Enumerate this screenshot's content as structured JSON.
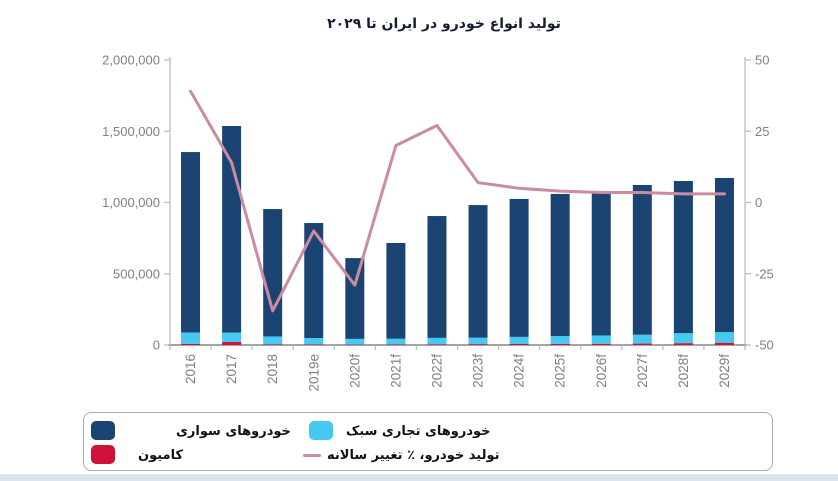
{
  "title": "تولید انواع خودرو در ایران تا ۲۰۲۹",
  "colors": {
    "passenger_bar": "#1c4473",
    "light_commercial_bar": "#45c8f1",
    "truck_bar": "#cf1038",
    "line": "#cb8ba0",
    "axis_text": "#808080",
    "axis_line": "#bdbdbd",
    "baseline": "#a3a3a3",
    "title_text": "#141d35",
    "legend_border": "#ababab",
    "bottom_strip": "#dbe3ee"
  },
  "chart_data": {
    "type": "combo: stacked bar + line",
    "categories": [
      "2016",
      "2017",
      "2018",
      "2019e",
      "2020f",
      "2021f",
      "2022f",
      "2023f",
      "2024f",
      "2025f",
      "2026f",
      "2027f",
      "2028f",
      "2029f"
    ],
    "series": [
      {
        "name": "خودروهای سواری",
        "type": "bar",
        "axis": "left",
        "color": "#1c4473",
        "values": [
          1266000,
          1450000,
          894000,
          807000,
          567000,
          672000,
          855000,
          931000,
          968000,
          997000,
          1014000,
          1051000,
          1068000,
          1081000
        ]
      },
      {
        "name": "خودروهای تجاری سبک",
        "type": "bar",
        "axis": "left",
        "color": "#45c8f1",
        "values": [
          80000,
          65000,
          55000,
          45000,
          40000,
          40000,
          45000,
          45000,
          50000,
          55000,
          58000,
          62000,
          70000,
          75000
        ]
      },
      {
        "name": "کامیون",
        "type": "bar",
        "axis": "left",
        "color": "#cf1038",
        "values": [
          8000,
          22000,
          5000,
          4000,
          3000,
          4000,
          5000,
          6000,
          7000,
          8000,
          9000,
          10000,
          13000,
          16000
        ]
      },
      {
        "name": "تولید خودرو، ٪ تغییر سالانه",
        "type": "line",
        "axis": "right",
        "color": "#cb8ba0",
        "values": [
          39,
          14,
          -38,
          -10,
          -29,
          20,
          27,
          7,
          5,
          4,
          3.5,
          3.5,
          3,
          3
        ]
      }
    ],
    "stack_order_bottom_to_top": [
      "کامیون",
      "خودروهای تجاری سبک",
      "خودروهای سواری"
    ],
    "left_axis": {
      "min": 0,
      "max": 2000000,
      "tick_values": [
        0,
        500000,
        1000000,
        1500000,
        2000000
      ],
      "tick_labels": [
        "0",
        "500,000",
        "1,000,000",
        "1,500,000",
        "2,000,000"
      ]
    },
    "right_axis": {
      "min": -50,
      "max": 50,
      "tick_values": [
        -50,
        -25,
        0,
        25,
        50
      ],
      "tick_labels": [
        "-50",
        "-25",
        "0",
        "25",
        "50"
      ]
    },
    "grid": false,
    "legend_position": "bottom",
    "x_labels_rotated": true
  }
}
